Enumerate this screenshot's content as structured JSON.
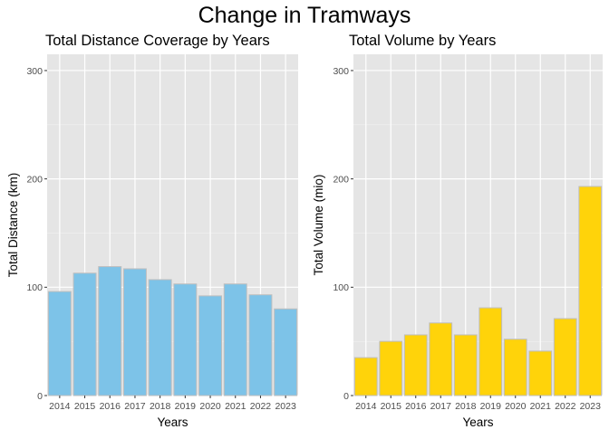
{
  "figure": {
    "title": "Change in Tramways"
  },
  "chart_data": [
    {
      "type": "bar",
      "title": "Total Distance Coverage by Years",
      "xlabel": "Years",
      "ylabel": "Total Distance (km)",
      "categories": [
        "2014",
        "2015",
        "2016",
        "2017",
        "2018",
        "2019",
        "2020",
        "2021",
        "2022",
        "2023"
      ],
      "values": [
        96,
        113,
        119,
        117,
        107,
        103,
        92,
        103,
        93,
        80
      ],
      "ylim": [
        0,
        315
      ],
      "yticks": [
        0,
        100,
        200,
        300
      ],
      "grid": true,
      "legend": "none",
      "bar_color": "#7DC3E8",
      "bar_edge": "#BEBEBE",
      "panel_bg": "#E5E5E5"
    },
    {
      "type": "bar",
      "title": "Total Volume by Years",
      "xlabel": "Years",
      "ylabel": "Total Volume (mio)",
      "categories": [
        "2014",
        "2015",
        "2016",
        "2017",
        "2018",
        "2019",
        "2020",
        "2021",
        "2022",
        "2023"
      ],
      "values": [
        35,
        50,
        56,
        67,
        56,
        81,
        52,
        41,
        71,
        193
      ],
      "ylim": [
        0,
        315
      ],
      "yticks": [
        0,
        100,
        200,
        300
      ],
      "grid": true,
      "legend": "none",
      "bar_color": "#FFD30A",
      "bar_edge": "#BEBEBE",
      "panel_bg": "#E5E5E5"
    }
  ]
}
